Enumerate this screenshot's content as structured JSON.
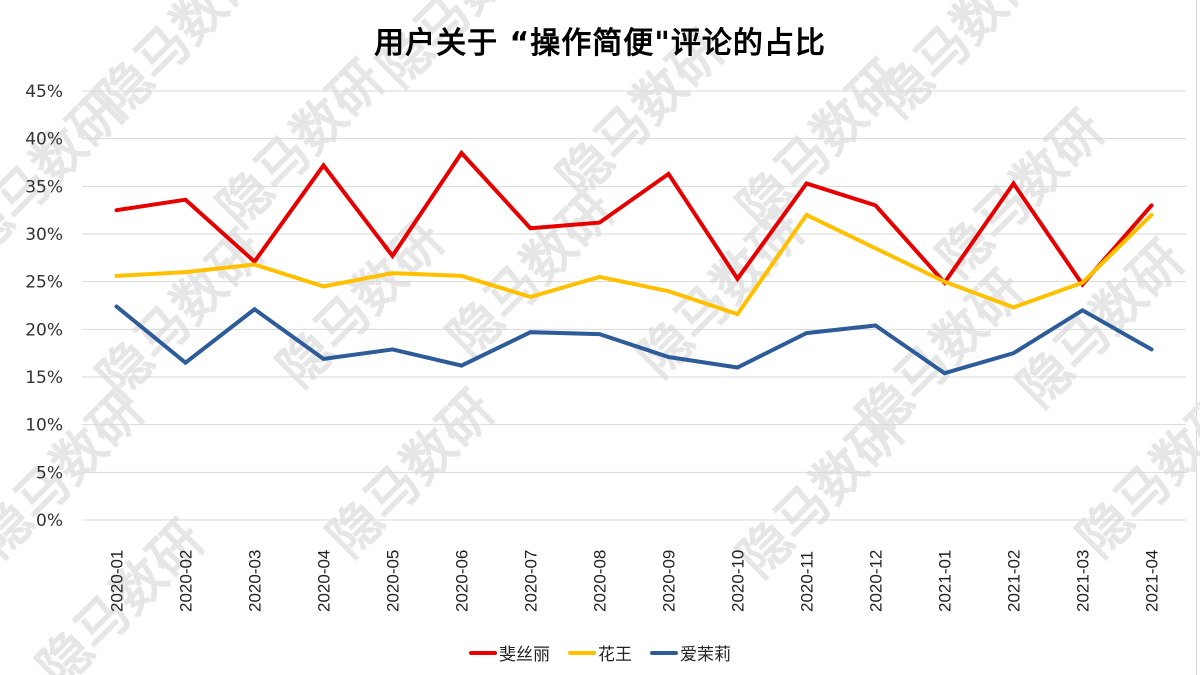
{
  "title": "用户关于 “操作简便\"评论的占比",
  "watermark": "隐马数研",
  "legend": [
    {
      "label": "斐丝丽",
      "color": "#e60000"
    },
    {
      "label": "花王",
      "color": "#ffc000"
    },
    {
      "label": "爱茉莉",
      "color": "#2e5c99"
    }
  ],
  "chart_data": {
    "type": "line",
    "title": "用户关于 “操作简便\"评论的占比",
    "xlabel": "",
    "ylabel": "",
    "ylim": [
      0,
      45
    ],
    "y_ticks": [
      "0%",
      "5%",
      "10%",
      "15%",
      "20%",
      "25%",
      "30%",
      "35%",
      "40%",
      "45%"
    ],
    "grid": true,
    "legend_position": "bottom",
    "categories": [
      "2020-01",
      "2020-02",
      "2020-03",
      "2020-04",
      "2020-05",
      "2020-06",
      "2020-07",
      "2020-08",
      "2020-09",
      "2020-10",
      "2020-11",
      "2020-12",
      "2021-01",
      "2021-02",
      "2021-03",
      "2021-04"
    ],
    "series": [
      {
        "name": "斐丝丽",
        "color": "#e60000",
        "values": [
          32.5,
          33.6,
          27.1,
          37.2,
          27.7,
          38.5,
          30.6,
          31.2,
          36.3,
          25.3,
          35.3,
          33.0,
          24.9,
          35.3,
          24.7,
          33.0
        ]
      },
      {
        "name": "花王",
        "color": "#ffc000",
        "values": [
          25.6,
          26.0,
          26.8,
          24.5,
          25.9,
          25.6,
          23.4,
          25.5,
          24.0,
          21.6,
          32.0,
          28.5,
          25.0,
          22.3,
          24.9,
          32.0
        ]
      },
      {
        "name": "爱茉莉",
        "color": "#2e5c99",
        "values": [
          22.4,
          16.5,
          22.1,
          16.9,
          17.9,
          16.2,
          19.7,
          19.5,
          17.1,
          16.0,
          19.6,
          20.4,
          15.4,
          17.5,
          22.0,
          17.9
        ]
      }
    ]
  }
}
